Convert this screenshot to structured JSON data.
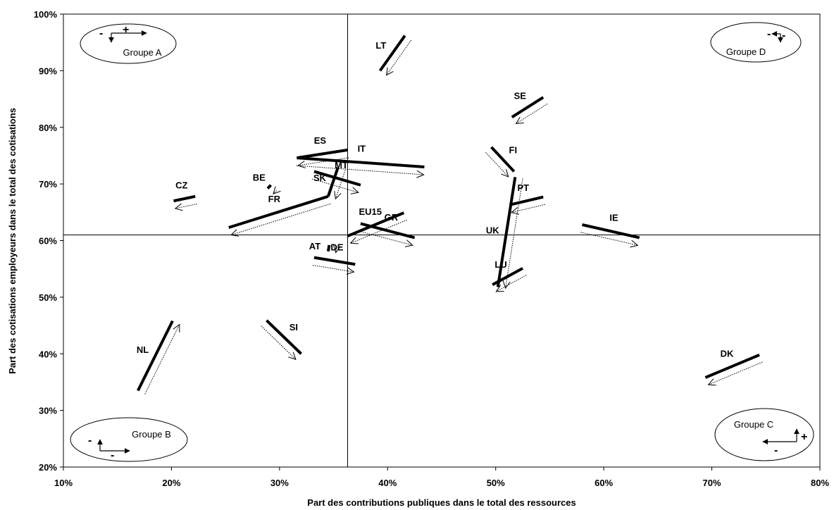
{
  "chart_data": {
    "type": "scatter",
    "xlabel": "Part des contributions publiques dans le total des ressources",
    "ylabel": "Part des cotisations employeurs dans le total des cotisations",
    "xlim": [
      0.1,
      0.8
    ],
    "ylim": [
      0.2,
      1.0
    ],
    "x_ticks": [
      "10%",
      "20%",
      "30%",
      "40%",
      "50%",
      "60%",
      "70%",
      "80%"
    ],
    "y_ticks": [
      "20%",
      "30%",
      "40%",
      "50%",
      "60%",
      "70%",
      "80%",
      "90%",
      "100%"
    ],
    "quadrant_split": {
      "x": 0.363,
      "y": 0.61
    },
    "grid": false,
    "groups": [
      {
        "name": "Groupe A",
        "pos": "top-left",
        "signs": [
          "-",
          "+"
        ]
      },
      {
        "name": "Groupe D",
        "pos": "top-right",
        "signs": [
          "-",
          "-"
        ]
      },
      {
        "name": "Groupe B",
        "pos": "bottom-left",
        "signs": [
          "-",
          "-"
        ]
      },
      {
        "name": "Groupe C",
        "pos": "bottom-right",
        "signs": [
          "+",
          "-"
        ]
      }
    ],
    "series": [
      {
        "name": "LT",
        "start": [
          0.416,
          0.962
        ],
        "end": [
          0.393,
          0.9
        ]
      },
      {
        "name": "SE",
        "start": [
          0.544,
          0.853
        ],
        "end": [
          0.515,
          0.818
        ]
      },
      {
        "name": "ES",
        "start": [
          0.363,
          0.76
        ],
        "end": [
          0.316,
          0.746
        ]
      },
      {
        "name": "IT",
        "start": [
          0.316,
          0.746
        ],
        "end": [
          0.434,
          0.73
        ]
      },
      {
        "name": "FI",
        "start": [
          0.496,
          0.765
        ],
        "end": [
          0.517,
          0.722
        ]
      },
      {
        "name": "MT",
        "start": [
          0.332,
          0.722
        ],
        "end": [
          0.375,
          0.698
        ]
      },
      {
        "name": "BE",
        "start": [
          0.292,
          0.698
        ],
        "end": [
          0.289,
          0.692
        ]
      },
      {
        "name": "CZ",
        "start": [
          0.222,
          0.678
        ],
        "end": [
          0.202,
          0.67
        ]
      },
      {
        "name": "SK",
        "start": [
          0.354,
          0.729
        ],
        "end": [
          0.345,
          0.678
        ]
      },
      {
        "name": "FR",
        "start": [
          0.345,
          0.678
        ],
        "end": [
          0.253,
          0.623
        ]
      },
      {
        "name": "PT",
        "start": [
          0.544,
          0.677
        ],
        "end": [
          0.513,
          0.663
        ]
      },
      {
        "name": "EU15",
        "start": [
          0.415,
          0.649
        ],
        "end": [
          0.363,
          0.608
        ]
      },
      {
        "name": "IE",
        "start": [
          0.58,
          0.628
        ],
        "end": [
          0.633,
          0.605
        ]
      },
      {
        "name": "GR",
        "start": [
          0.375,
          0.63
        ],
        "end": [
          0.425,
          0.605
        ]
      },
      {
        "name": "UK",
        "start": [
          0.518,
          0.712
        ],
        "end": [
          0.502,
          0.518
        ]
      },
      {
        "name": "AT",
        "start": [
          0.346,
          0.592
        ],
        "end": [
          0.345,
          0.581
        ]
      },
      {
        "name": "DE",
        "start": [
          0.332,
          0.57
        ],
        "end": [
          0.37,
          0.558
        ]
      },
      {
        "name": "LU",
        "start": [
          0.525,
          0.551
        ],
        "end": [
          0.497,
          0.522
        ]
      },
      {
        "name": "NL",
        "start": [
          0.169,
          0.335
        ],
        "end": [
          0.201,
          0.458
        ]
      },
      {
        "name": "SI",
        "start": [
          0.288,
          0.459
        ],
        "end": [
          0.32,
          0.4
        ]
      },
      {
        "name": "DK",
        "start": [
          0.744,
          0.398
        ],
        "end": [
          0.694,
          0.358
        ]
      }
    ]
  }
}
